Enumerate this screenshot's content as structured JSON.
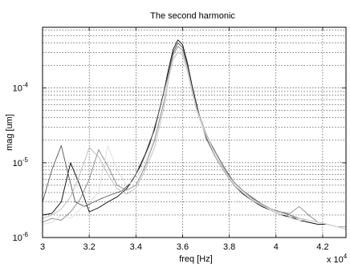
{
  "chart_data": {
    "type": "line",
    "title": "The second harmonic",
    "xlabel": "freq [Hz]",
    "ylabel": "mag [um]",
    "x_multiplier": "x 10",
    "x_multiplier_exponent": "4",
    "xlim": [
      3.0,
      4.3
    ],
    "ylim": [
      1e-06,
      0.00065
    ],
    "yscale": "log",
    "grid": true,
    "x_ticks": [
      3.0,
      3.2,
      3.4,
      3.6,
      3.8,
      4.0,
      4.2
    ],
    "x_tick_labels": [
      "3",
      "3.2",
      "3.4",
      "3.6",
      "3.8",
      "4",
      "4.2"
    ],
    "y_ticks": [
      1e-06,
      1e-05,
      0.0001
    ],
    "y_tick_labels": [
      {
        "base": "10",
        "exp": "-6"
      },
      {
        "base": "10",
        "exp": "-5"
      },
      {
        "base": "10",
        "exp": "-4"
      }
    ],
    "x_unit_multiplier": 10000,
    "series": [
      {
        "color": "#000000",
        "width": 0.9,
        "x": [
          3.0,
          3.04,
          3.08,
          3.12,
          3.16,
          3.2,
          3.24,
          3.28,
          3.32,
          3.36,
          3.4,
          3.44,
          3.48,
          3.52,
          3.54,
          3.56,
          3.58,
          3.6,
          3.62,
          3.64,
          3.66,
          3.68,
          3.7,
          3.74,
          3.78,
          3.82,
          3.86,
          3.9,
          3.94,
          3.98,
          4.02,
          4.06,
          4.1,
          4.14,
          4.18,
          4.22,
          4.26,
          4.3
        ],
        "y": [
          2e-06,
          2.1e-06,
          3e-06,
          1e-05,
          5e-06,
          2.2e-06,
          2.5e-06,
          3e-06,
          3.5e-06,
          4.5e-06,
          7e-06,
          1.3e-05,
          2.8e-05,
          9e-05,
          0.00018,
          0.00033,
          0.00044,
          0.00038,
          0.00022,
          0.00011,
          6e-05,
          3.5e-05,
          2.2e-05,
          1.2e-05,
          7.5e-06,
          5e-06,
          3.8e-06,
          3.1e-06,
          2.6e-06,
          2.3e-06,
          2e-06,
          1.9e-06,
          1.7e-06,
          1.6e-06,
          1.5e-06,
          1.5e-06,
          1.4e-06,
          1.4e-06
        ]
      },
      {
        "color": "#555555",
        "width": 0.9,
        "x": [
          3.0,
          3.04,
          3.08,
          3.11,
          3.14,
          3.18,
          3.22,
          3.26,
          3.3,
          3.34,
          3.38,
          3.42,
          3.46,
          3.5,
          3.54,
          3.56,
          3.58,
          3.6,
          3.62,
          3.64,
          3.66,
          3.7,
          3.74,
          3.78,
          3.82,
          3.86,
          3.9,
          3.94,
          3.98,
          4.02,
          4.06,
          4.1,
          4.14,
          4.18,
          4.22,
          4.26,
          4.3
        ],
        "y": [
          3e-06,
          8e-06,
          1.7e-05,
          7e-06,
          3e-06,
          2.6e-06,
          3e-06,
          3.4e-06,
          3.8e-06,
          4.2e-06,
          5.5e-06,
          9e-06,
          1.8e-05,
          5e-05,
          0.00016,
          0.0003,
          0.0004,
          0.00035,
          0.0002,
          0.0001,
          5.5e-05,
          2.4e-05,
          1.4e-05,
          8.5e-06,
          5.5e-06,
          4.2e-06,
          3.4e-06,
          2.8e-06,
          2.4e-06,
          2.2e-06,
          2e-06,
          1.8e-06,
          1.7e-06,
          1.6e-06,
          1.5e-06,
          1.4e-06,
          1.3e-06
        ]
      },
      {
        "color": "#888888",
        "width": 0.9,
        "x": [
          3.0,
          3.04,
          3.08,
          3.12,
          3.16,
          3.2,
          3.24,
          3.28,
          3.32,
          3.36,
          3.4,
          3.44,
          3.48,
          3.52,
          3.54,
          3.56,
          3.58,
          3.6,
          3.62,
          3.64,
          3.66,
          3.7,
          3.74,
          3.78,
          3.82,
          3.86,
          3.9,
          3.94,
          3.98,
          4.02,
          4.06,
          4.1,
          4.14,
          4.18,
          4.22,
          4.26,
          4.3
        ],
        "y": [
          1.6e-06,
          1.8e-06,
          1.7e-06,
          2.2e-06,
          3.2e-06,
          6e-06,
          1.5e-05,
          9e-06,
          5e-06,
          4.3e-06,
          5e-06,
          9e-06,
          2e-05,
          6.5e-05,
          0.00015,
          0.00028,
          0.00036,
          0.00032,
          0.00019,
          0.0001,
          5.5e-05,
          2.5e-05,
          1.3e-05,
          8e-06,
          5.5e-06,
          4.2e-06,
          3.3e-06,
          2.8e-06,
          2.4e-06,
          2.2e-06,
          2.1e-06,
          2.6e-06,
          2e-06,
          1.6e-06,
          1.5e-06,
          1.4e-06,
          1.3e-06
        ]
      },
      {
        "color": "#bbbbbb",
        "width": 0.9,
        "x": [
          3.0,
          3.04,
          3.08,
          3.12,
          3.16,
          3.2,
          3.24,
          3.28,
          3.32,
          3.36,
          3.4,
          3.44,
          3.48,
          3.52,
          3.54,
          3.56,
          3.58,
          3.6,
          3.62,
          3.64,
          3.66,
          3.7,
          3.74,
          3.78,
          3.82,
          3.86,
          3.9,
          3.94,
          3.98,
          4.02,
          4.06,
          4.1,
          4.14,
          4.18,
          4.22,
          4.26,
          4.3
        ],
        "y": [
          1.8e-06,
          2e-06,
          2.4e-06,
          3.5e-06,
          7e-06,
          1.6e-05,
          1.2e-05,
          7e-06,
          4.5e-06,
          3.8e-06,
          4.6e-06,
          8e-06,
          1.6e-05,
          5.5e-05,
          0.00013,
          0.00024,
          0.0003,
          0.00028,
          0.00017,
          9e-05,
          5e-05,
          2.3e-05,
          1.2e-05,
          7.5e-06,
          5e-06,
          3.9e-06,
          3.1e-06,
          2.7e-06,
          2.4e-06,
          2.1e-06,
          1.9e-06,
          1.8e-06,
          1.7e-06,
          1.6e-06,
          1.5e-06,
          1.4e-06,
          1.4e-06
        ]
      },
      {
        "color": "#dddddd",
        "width": 0.9,
        "x": [
          3.0,
          3.04,
          3.08,
          3.12,
          3.16,
          3.2,
          3.24,
          3.28,
          3.32,
          3.36,
          3.4,
          3.44,
          3.48,
          3.52,
          3.54,
          3.56,
          3.58,
          3.6,
          3.62,
          3.64,
          3.66,
          3.7,
          3.74,
          3.78,
          3.82,
          3.86,
          3.9,
          3.94,
          3.98,
          4.02,
          4.06,
          4.1,
          4.14,
          4.18,
          4.22,
          4.26,
          4.3
        ],
        "y": [
          1.5e-06,
          1.6e-06,
          2e-06,
          1.8e-06,
          2.4e-06,
          3e-06,
          4e-06,
          1.7e-05,
          8e-06,
          5e-06,
          6e-06,
          1e-05,
          2.2e-05,
          7e-05,
          0.00014,
          0.00025,
          0.00032,
          0.0003,
          0.00018,
          9.5e-05,
          5.2e-05,
          2.4e-05,
          1.3e-05,
          7.8e-06,
          5.2e-06,
          4e-06,
          3.2e-06,
          2.7e-06,
          2.3e-06,
          2e-06,
          1.8e-06,
          1.7e-06,
          1.7e-06,
          1.6e-06,
          1.5e-06,
          1.4e-06,
          1.3e-06
        ]
      }
    ]
  }
}
